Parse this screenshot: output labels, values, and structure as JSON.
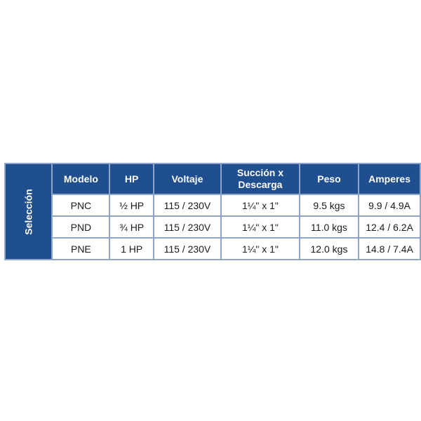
{
  "side_label": "Selección",
  "headers": [
    "Modelo",
    "HP",
    "Voltaje",
    "Succión x Descarga",
    "Peso",
    "Amperes"
  ],
  "rows": [
    [
      "PNC",
      "½ HP",
      "115 / 230V",
      "1¼\" x 1\"",
      "9.5 kgs",
      "9.9 / 4.9A"
    ],
    [
      "PND",
      "¾ HP",
      "115 / 230V",
      "1¼\" x 1\"",
      "11.0 kgs",
      "12.4 / 6.2A"
    ],
    [
      "PNE",
      "1 HP",
      "115 / 230V",
      "1¼\" x 1\"",
      "12.0 kgs",
      "14.8 / 7.4A"
    ]
  ],
  "colors": {
    "header_bg": "#1f4f8f",
    "border": "#8ea5c6"
  }
}
